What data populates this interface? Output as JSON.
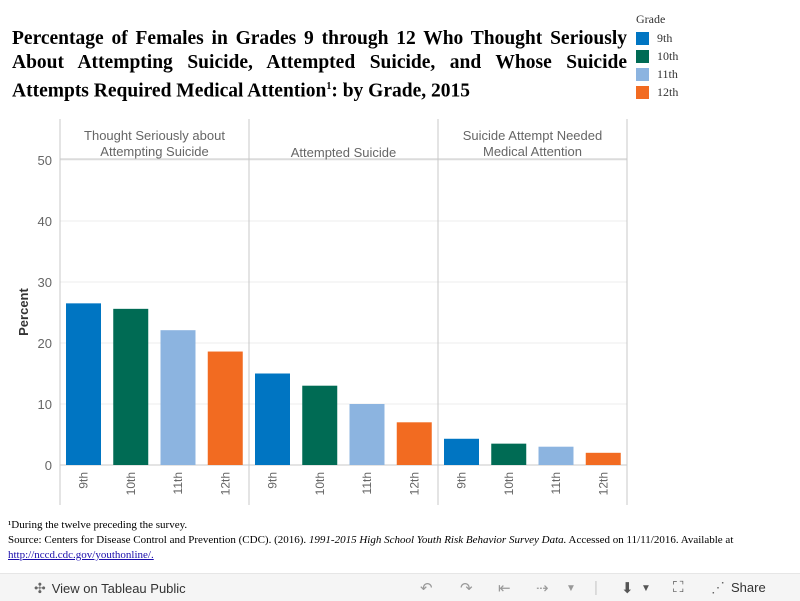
{
  "chart_data": {
    "type": "bar",
    "title": "Percentage of Females in Grades 9 through 12 Who Thought Seriously About Attempting Suicide, Attempted Suicide, and Whose Suicide Attempts Required Medical Attention",
    "title_footnote_mark": "1",
    "title_suffix": ": by Grade, 2015",
    "ylabel": "Percent",
    "ylim": [
      0,
      50
    ],
    "yticks": [
      0,
      10,
      20,
      30,
      40,
      50
    ],
    "panels": [
      {
        "label_lines": [
          "Thought Seriously about",
          "Attempting Suicide"
        ],
        "values": [
          26.5,
          25.6,
          22.1,
          18.6
        ]
      },
      {
        "label_lines": [
          "Attempted Suicide"
        ],
        "values": [
          15.0,
          13.0,
          10.0,
          7.0
        ]
      },
      {
        "label_lines": [
          "Suicide Attempt Needed",
          "Medical Attention"
        ],
        "values": [
          4.3,
          3.5,
          3.0,
          2.0
        ]
      }
    ],
    "series": [
      {
        "name": "9th",
        "color": "#0075c2"
      },
      {
        "name": "10th",
        "color": "#006b54"
      },
      {
        "name": "11th",
        "color": "#8cb4e0"
      },
      {
        "name": "12th",
        "color": "#f26b21"
      }
    ],
    "legend_title": "Grade"
  },
  "footnote": {
    "line1": "¹During the twelve preceding the survey.",
    "source_prefix": "Source: Centers for Disease Control and Prevention (CDC). (2016). ",
    "source_italic": "1991-2015 High School Youth Risk Behavior Survey Data.",
    "source_suffix": " Accessed on 11/11/2016. Available at",
    "link": "http://nccd.cdc.gov/youthonline/."
  },
  "toolbar": {
    "view_label": "View on Tableau Public",
    "share_label": "Share"
  }
}
